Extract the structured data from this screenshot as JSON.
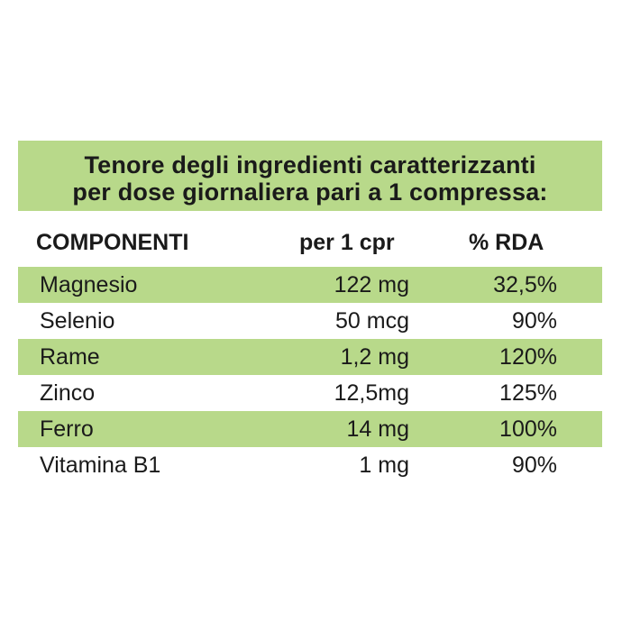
{
  "title": {
    "line1": "Tenore degli ingredienti caratterizzanti",
    "line2": "per dose giornaliera pari a 1 compressa:"
  },
  "header": {
    "componenti": "COMPONENTI",
    "per_cpr": "per 1 cpr",
    "rda": "% RDA"
  },
  "rows": [
    {
      "name": "Magnesio",
      "qty": "122 mg",
      "rda": "32,5%"
    },
    {
      "name": "Selenio",
      "qty": "50 mcg",
      "rda": "90%"
    },
    {
      "name": "Rame",
      "qty": "1,2 mg",
      "rda": "120%"
    },
    {
      "name": "Zinco",
      "qty": "12,5mg",
      "rda": "125%"
    },
    {
      "name": "Ferro",
      "qty": "14 mg",
      "rda": "100%"
    },
    {
      "name": "Vitamina B1",
      "qty": "1 mg",
      "rda": "90%"
    }
  ],
  "colors": {
    "band": "#b8d98a",
    "text": "#1a1a1a"
  }
}
